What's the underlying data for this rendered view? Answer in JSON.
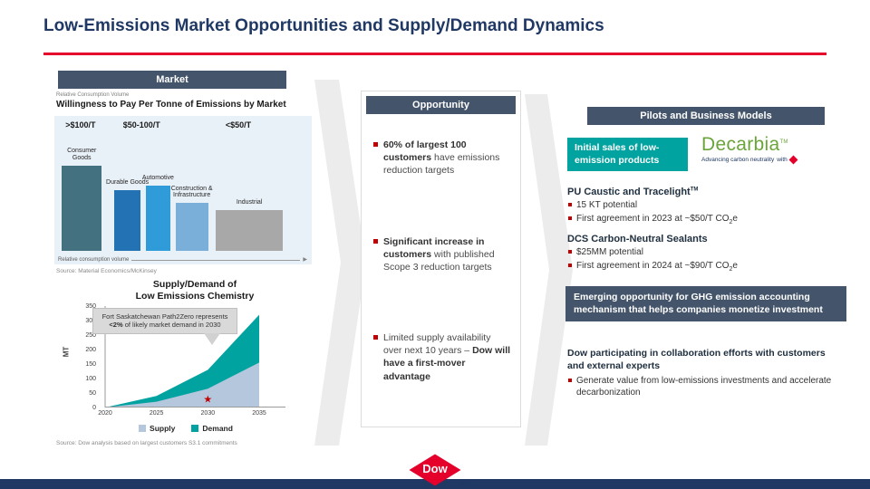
{
  "slide": {
    "title": "Low-Emissions Market Opportunities and Supply/Demand Dynamics"
  },
  "market": {
    "header": "Market",
    "kicker": "Relative Consumption Volume",
    "source": "Source: Material Economics/McKinsey"
  },
  "supply_demand": {
    "title_line1": "Supply/Demand of",
    "title_line2": "Low Emissions Chemistry",
    "source": "Source: Dow analysis based on largest customers S3.1 commitments"
  },
  "chart_data": [
    {
      "id": "willingness-to-pay",
      "type": "bar",
      "title": "Willingness to Pay Per Tonne of Emissions by Market",
      "xlabel": "Relative consumption volume",
      "tiers": [
        {
          "label": ">$100/T",
          "left_pct": 3
        },
        {
          "label": "$50-100/T",
          "left_pct": 26
        },
        {
          "label": "<$50/T",
          "left_pct": 67
        }
      ],
      "segments": [
        {
          "label": "Consumer Goods",
          "tier": ">$100/T",
          "left_pct": 1.5,
          "width_pct": 16,
          "height_pct": 73,
          "color": "#44717f"
        },
        {
          "label": "Durable Goods",
          "tier": "$50-100/T",
          "left_pct": 22.5,
          "width_pct": 10.5,
          "height_pct": 52,
          "color": "#2272b4"
        },
        {
          "label": "Automotive",
          "tier": "$50-100/T",
          "left_pct": 35,
          "width_pct": 10,
          "height_pct": 56,
          "color": "#2f9cd9"
        },
        {
          "label": "Construction & Infrastructure",
          "tier": "$50-100/T",
          "left_pct": 47,
          "width_pct": 13,
          "height_pct": 41,
          "color": "#79afd9"
        },
        {
          "label": "Industrial",
          "tier": "<$50/T",
          "left_pct": 63,
          "width_pct": 27,
          "height_pct": 35,
          "color": "#a8a8a8"
        }
      ]
    },
    {
      "id": "supply-demand",
      "type": "area",
      "title": "Supply/Demand of Low Emissions Chemistry",
      "ylabel": "MT",
      "x": [
        2020,
        2025,
        2030,
        2035
      ],
      "series": [
        {
          "name": "Supply",
          "color": "#b4c7dc",
          "values": [
            0,
            20,
            65,
            155
          ]
        },
        {
          "name": "Demand",
          "color": "#00a3a0",
          "values": [
            0,
            40,
            130,
            320
          ]
        }
      ],
      "yticks": [
        0,
        50,
        100,
        150,
        200,
        250,
        300,
        350
      ],
      "ylim": [
        0,
        350
      ],
      "legend_position": "bottom",
      "annotation": {
        "pre": "Fort Saskatchewan Path2Zero represents ",
        "bold": "<2%",
        "post": " of likely market demand in 2030",
        "marker": {
          "x": 2030,
          "y": 30,
          "symbol": "star",
          "color": "#c00000"
        }
      }
    }
  ],
  "opportunity": {
    "header": "Opportunity",
    "bullets": [
      {
        "pre": "",
        "bold": "60% of largest 100 customers",
        "post": " have emissions reduction targets"
      },
      {
        "pre": "",
        "bold": "Significant increase in customers",
        "post": " with published Scope 3 reduction targets"
      },
      {
        "pre": "Limited supply availability over next 10 years – ",
        "bold": "Dow will have a first-mover advantage",
        "post": ""
      }
    ]
  },
  "pilots": {
    "header": "Pilots and Business Models",
    "initial_sales_label": "Initial sales of low-emission products",
    "decarbia": {
      "name": "Decarbia",
      "tm": "TM",
      "tagline": "Advancing carbon neutrality",
      "with_label": "with"
    },
    "products": [
      {
        "name": "PU Caustic and Tracelight",
        "name_sup": "TM",
        "bullets": [
          {
            "pre": "15 KT potential",
            "sub": "",
            "post": ""
          },
          {
            "pre": "First agreement in 2023 at ~$50/T CO",
            "sub": "2",
            "post": "e"
          }
        ]
      },
      {
        "name": "DCS Carbon-Neutral Sealants",
        "name_sup": "",
        "bullets": [
          {
            "pre": "$25MM potential",
            "sub": "",
            "post": ""
          },
          {
            "pre": "First agreement in 2024 at ~$90/T CO",
            "sub": "2",
            "post": "e"
          }
        ]
      }
    ],
    "emerging_box": "Emerging opportunity for GHG emission accounting mechanism that helps companies monetize investment",
    "collab_title": "Dow participating in collaboration efforts with customers and external experts",
    "collab_bullet": "Generate value from low-emissions investments and accelerate decarbonization"
  },
  "footer": {
    "logo_text": "Dow",
    "reg": "®"
  }
}
